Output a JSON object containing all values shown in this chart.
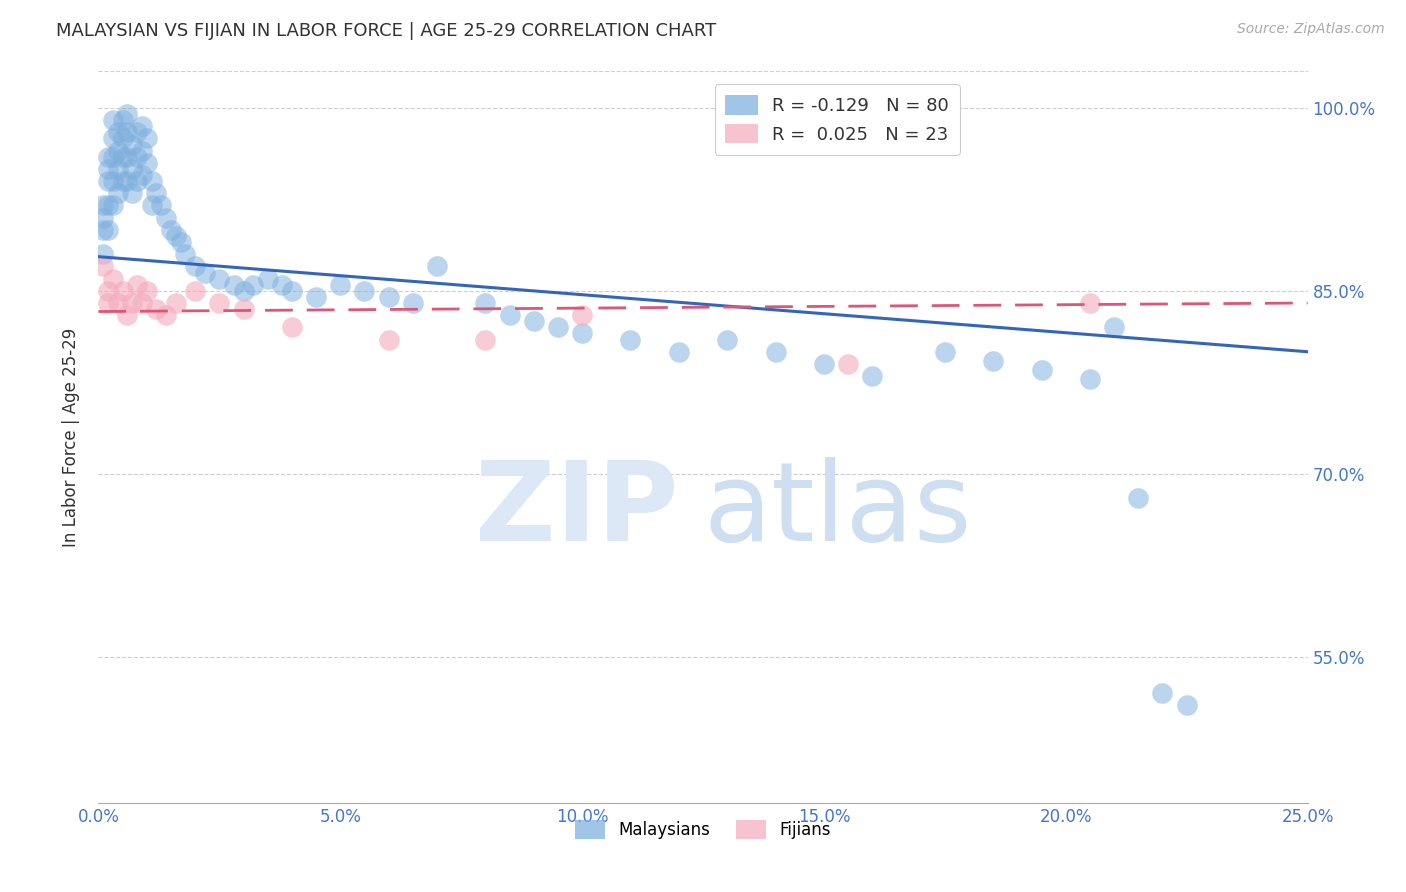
{
  "title": "MALAYSIAN VS FIJIAN IN LABOR FORCE | AGE 25-29 CORRELATION CHART",
  "source": "Source: ZipAtlas.com",
  "ylabel": "In Labor Force | Age 25-29",
  "x_min": 0.0,
  "x_max": 0.25,
  "y_min": 0.43,
  "y_max": 1.03,
  "x_tick_labels": [
    "0.0%",
    "5.0%",
    "10.0%",
    "15.0%",
    "20.0%",
    "25.0%"
  ],
  "x_tick_vals": [
    0.0,
    0.05,
    0.1,
    0.15,
    0.2,
    0.25
  ],
  "y_tick_labels": [
    "55.0%",
    "70.0%",
    "85.0%",
    "100.0%"
  ],
  "y_tick_vals": [
    0.55,
    0.7,
    0.85,
    1.0
  ],
  "blue_color": "#7aadde",
  "pink_color": "#f4aabc",
  "trend_blue": "#3366bb",
  "trend_pink": "#dd5577",
  "watermark_color": "#dce8f5",
  "axis_color": "#4477cc",
  "grid_color": "#bbbbbb",
  "background_color": "#ffffff",
  "blue_R": -0.129,
  "blue_N": 80,
  "pink_R": 0.025,
  "pink_N": 23,
  "blue_trend_y0": 0.878,
  "blue_trend_y1": 0.8,
  "pink_trend_y0": 0.833,
  "pink_trend_y1": 0.84,
  "malaysians_x": [
    0.001,
    0.001,
    0.001,
    0.001,
    0.002,
    0.002,
    0.002,
    0.002,
    0.002,
    0.003,
    0.003,
    0.003,
    0.003,
    0.003,
    0.004,
    0.004,
    0.004,
    0.004,
    0.005,
    0.005,
    0.005,
    0.005,
    0.006,
    0.006,
    0.006,
    0.006,
    0.007,
    0.007,
    0.007,
    0.008,
    0.008,
    0.008,
    0.009,
    0.009,
    0.009,
    0.01,
    0.01,
    0.011,
    0.011,
    0.012,
    0.013,
    0.014,
    0.015,
    0.016,
    0.017,
    0.018,
    0.02,
    0.022,
    0.025,
    0.028,
    0.03,
    0.032,
    0.035,
    0.038,
    0.04,
    0.045,
    0.05,
    0.055,
    0.06,
    0.065,
    0.07,
    0.08,
    0.085,
    0.09,
    0.095,
    0.1,
    0.11,
    0.12,
    0.13,
    0.14,
    0.15,
    0.16,
    0.175,
    0.185,
    0.195,
    0.205,
    0.21,
    0.215,
    0.22,
    0.225
  ],
  "malaysians_y": [
    0.92,
    0.91,
    0.9,
    0.88,
    0.96,
    0.95,
    0.94,
    0.92,
    0.9,
    0.99,
    0.975,
    0.96,
    0.94,
    0.92,
    0.98,
    0.965,
    0.95,
    0.93,
    0.99,
    0.975,
    0.96,
    0.94,
    0.995,
    0.98,
    0.96,
    0.94,
    0.97,
    0.95,
    0.93,
    0.98,
    0.96,
    0.94,
    0.985,
    0.965,
    0.945,
    0.975,
    0.955,
    0.94,
    0.92,
    0.93,
    0.92,
    0.91,
    0.9,
    0.895,
    0.89,
    0.88,
    0.87,
    0.865,
    0.86,
    0.855,
    0.85,
    0.855,
    0.86,
    0.855,
    0.85,
    0.845,
    0.855,
    0.85,
    0.845,
    0.84,
    0.87,
    0.84,
    0.83,
    0.825,
    0.82,
    0.815,
    0.81,
    0.8,
    0.81,
    0.8,
    0.79,
    0.78,
    0.8,
    0.792,
    0.785,
    0.778,
    0.82,
    0.68,
    0.52,
    0.51
  ],
  "fijians_x": [
    0.001,
    0.002,
    0.002,
    0.003,
    0.004,
    0.005,
    0.006,
    0.007,
    0.008,
    0.009,
    0.01,
    0.012,
    0.014,
    0.016,
    0.02,
    0.025,
    0.03,
    0.04,
    0.06,
    0.08,
    0.1,
    0.155,
    0.205
  ],
  "fijians_y": [
    0.87,
    0.85,
    0.84,
    0.86,
    0.84,
    0.85,
    0.83,
    0.84,
    0.855,
    0.84,
    0.85,
    0.835,
    0.83,
    0.84,
    0.85,
    0.84,
    0.835,
    0.82,
    0.81,
    0.81,
    0.83,
    0.79,
    0.84
  ]
}
